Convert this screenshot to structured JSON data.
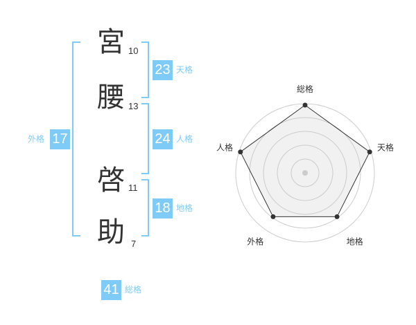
{
  "name": [
    {
      "char": "宮",
      "strokes": "10"
    },
    {
      "char": "腰",
      "strokes": "13"
    },
    {
      "char": "啓",
      "strokes": "11"
    },
    {
      "char": "助",
      "strokes": "7"
    }
  ],
  "kaku": {
    "tenkaku": {
      "label": "天格",
      "value": "23"
    },
    "jinkaku": {
      "label": "人格",
      "value": "24"
    },
    "chikaku": {
      "label": "地格",
      "value": "18"
    },
    "gaikaku": {
      "label": "外格",
      "value": "17"
    },
    "soukaku": {
      "label": "総格",
      "value": "41"
    }
  },
  "accent": "#7fcbf7",
  "chart_data": {
    "type": "radar",
    "axes": [
      "総格",
      "天格",
      "地格",
      "外格",
      "人格"
    ],
    "values": [
      5,
      5,
      4,
      4,
      5
    ],
    "range": [
      0,
      5
    ]
  }
}
